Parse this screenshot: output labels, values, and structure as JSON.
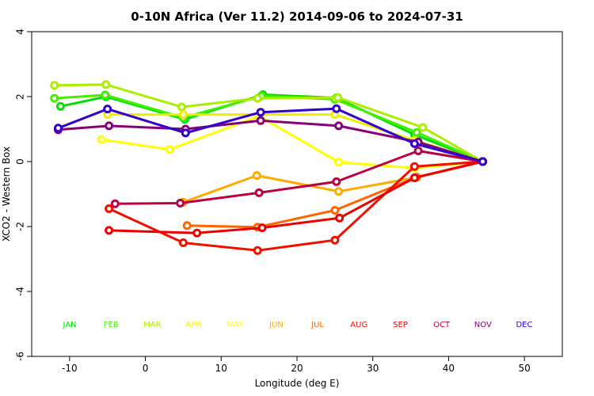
{
  "chart_data": {
    "type": "line",
    "title": "0-10N Africa (Ver 11.2)   2014-09-06 to 2024-07-31",
    "xlabel": "Longitude (deg E)",
    "ylabel": "XCO2 - Western Box",
    "xlim": [
      -15,
      55
    ],
    "ylim": [
      -6,
      4
    ],
    "xticks": [
      -10,
      0,
      10,
      20,
      30,
      40,
      50
    ],
    "yticks": [
      -6,
      -4,
      -2,
      0,
      2,
      4
    ],
    "grid": false,
    "legend_position": "bottom",
    "series": [
      {
        "name": "JAN",
        "color": "#00e000",
        "points": [
          [
            -11.2,
            1.7
          ],
          [
            -5.2,
            2.0
          ],
          [
            5.2,
            1.3
          ],
          [
            15.5,
            2.06
          ],
          [
            25.2,
            1.96
          ],
          [
            35.5,
            0.83
          ],
          [
            44.5,
            0.0
          ]
        ]
      },
      {
        "name": "FEB",
        "color": "#44ee00",
        "points": [
          [
            -12.0,
            1.95
          ],
          [
            -5.3,
            2.05
          ],
          [
            5.0,
            1.35
          ],
          [
            15.3,
            2.02
          ],
          [
            25.0,
            1.92
          ],
          [
            35.8,
            0.9
          ],
          [
            44.5,
            0.0
          ]
        ]
      },
      {
        "name": "MAR",
        "color": "#aaee00",
        "points": [
          [
            -12.0,
            2.35
          ],
          [
            -5.2,
            2.37
          ],
          [
            4.8,
            1.68
          ],
          [
            14.8,
            1.95
          ],
          [
            25.4,
            1.97
          ],
          [
            36.6,
            1.05
          ],
          [
            44.5,
            0.0
          ]
        ]
      },
      {
        "name": "APR",
        "color": "#eeee00",
        "points": [
          [
            -5.0,
            1.45
          ],
          [
            5.0,
            1.45
          ],
          [
            15.2,
            1.45
          ],
          [
            25.0,
            1.45
          ],
          [
            35.5,
            0.65
          ],
          [
            44.5,
            0.0
          ]
        ]
      },
      {
        "name": "MAY",
        "color": "#ffff00",
        "points": [
          [
            -5.8,
            0.68
          ],
          [
            3.2,
            0.37
          ],
          [
            15.0,
            1.4
          ],
          [
            25.5,
            -0.02
          ],
          [
            35.5,
            -0.2
          ],
          [
            44.5,
            0.0
          ]
        ]
      },
      {
        "name": "JUN",
        "color": "#ffaa00",
        "points": [
          [
            5.0,
            -1.25
          ],
          [
            14.7,
            -0.43
          ],
          [
            25.5,
            -0.92
          ],
          [
            35.5,
            -0.5
          ],
          [
            44.5,
            0.0
          ]
        ]
      },
      {
        "name": "JUL",
        "color": "#ff6600",
        "points": [
          [
            5.5,
            -1.97
          ],
          [
            14.8,
            -2.02
          ],
          [
            25.0,
            -1.5
          ],
          [
            35.8,
            -0.48
          ],
          [
            44.5,
            0.0
          ]
        ]
      },
      {
        "name": "AUG",
        "color": "#ee1100",
        "points": [
          [
            -4.8,
            -1.45
          ],
          [
            5.0,
            -2.5
          ],
          [
            14.8,
            -2.74
          ],
          [
            25.0,
            -2.42
          ],
          [
            35.5,
            -0.15
          ],
          [
            44.5,
            0.0
          ]
        ]
      },
      {
        "name": "SEP",
        "color": "#ee0000",
        "points": [
          [
            -4.8,
            -2.12
          ],
          [
            6.8,
            -2.2
          ],
          [
            15.4,
            -2.04
          ],
          [
            25.6,
            -1.74
          ],
          [
            35.5,
            -0.5
          ],
          [
            44.5,
            0.0
          ]
        ]
      },
      {
        "name": "OCT",
        "color": "#bb0044",
        "points": [
          [
            -4.0,
            -1.3
          ],
          [
            4.6,
            -1.28
          ],
          [
            15.0,
            -0.96
          ],
          [
            25.2,
            -0.62
          ],
          [
            36.0,
            0.33
          ],
          [
            44.5,
            0.0
          ]
        ]
      },
      {
        "name": "NOV",
        "color": "#880077",
        "points": [
          [
            -11.5,
            0.98
          ],
          [
            -4.8,
            1.1
          ],
          [
            5.3,
            1.0
          ],
          [
            15.2,
            1.26
          ],
          [
            25.5,
            1.1
          ],
          [
            36.0,
            0.6
          ],
          [
            44.5,
            0.0
          ]
        ]
      },
      {
        "name": "DEC",
        "color": "#3300cc",
        "points": [
          [
            -11.5,
            1.03
          ],
          [
            -5.0,
            1.62
          ],
          [
            5.3,
            0.88
          ],
          [
            15.2,
            1.52
          ],
          [
            25.2,
            1.63
          ],
          [
            35.5,
            0.55
          ],
          [
            44.5,
            0.0
          ]
        ]
      }
    ]
  }
}
